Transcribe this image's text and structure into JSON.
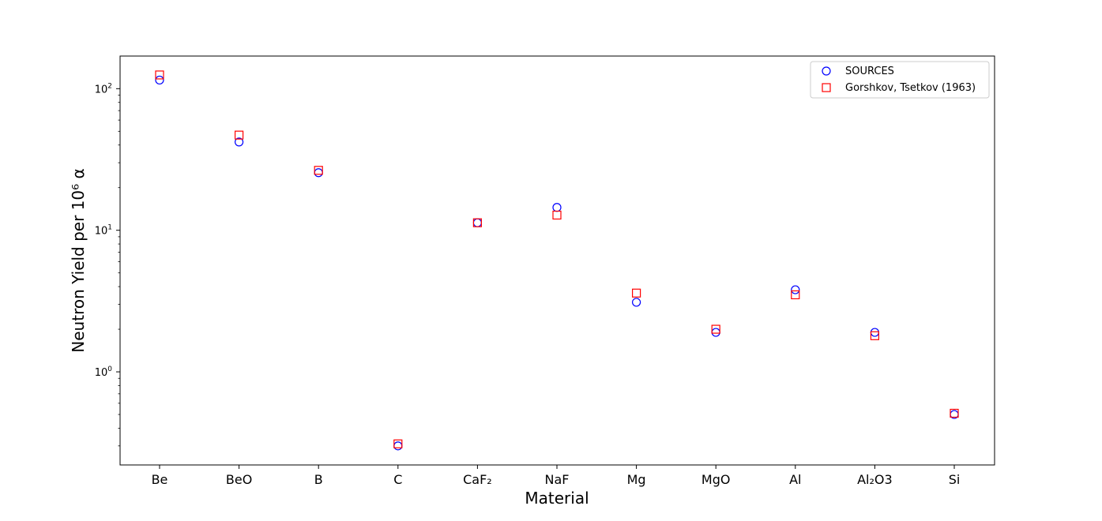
{
  "chart_data": {
    "type": "scatter",
    "xlabel": "Material",
    "ylabel": "Neutron Yield per 10⁶ α",
    "yscale": "log",
    "ylim": [
      0.22,
      170
    ],
    "grid": false,
    "legend_position": "top-right",
    "categories": [
      "Be",
      "BeO",
      "B",
      "C",
      "CaF₂",
      "NaF",
      "Mg",
      "MgO",
      "Al",
      "Al₂O3",
      "Si"
    ],
    "y_ticks": [
      {
        "value": 1,
        "base": "10",
        "exp": "0"
      },
      {
        "value": 10,
        "base": "10",
        "exp": "1"
      },
      {
        "value": 100,
        "base": "10",
        "exp": "2"
      }
    ],
    "series": [
      {
        "name": "SOURCES",
        "marker": "circle",
        "color": "#0000ff",
        "values": [
          115,
          42,
          25.5,
          0.3,
          11.3,
          14.5,
          3.1,
          1.9,
          3.8,
          1.9,
          0.5
        ]
      },
      {
        "name": "Gorshkov, Tsetkov (1963)",
        "marker": "square",
        "color": "#ff0000",
        "values": [
          125,
          47,
          26.5,
          0.31,
          11.3,
          12.8,
          3.6,
          2.0,
          3.5,
          1.8,
          0.51
        ]
      }
    ]
  }
}
